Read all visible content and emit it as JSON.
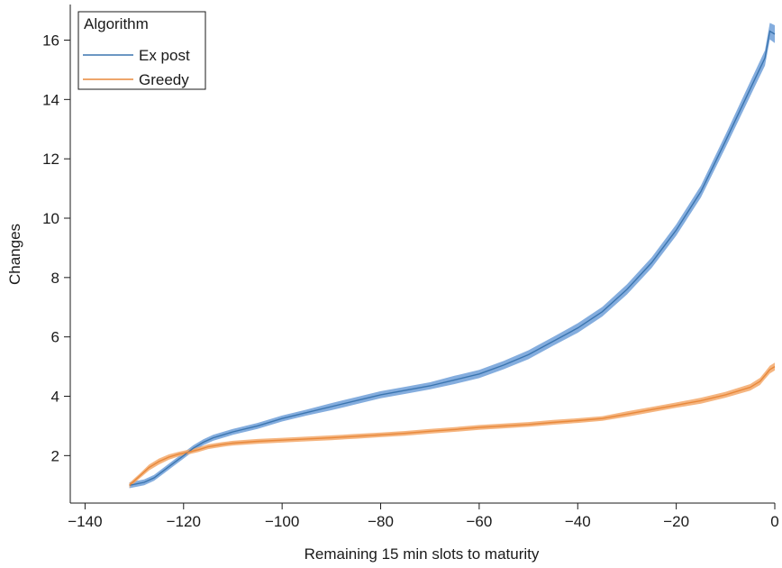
{
  "chart_data": {
    "type": "line",
    "title": "",
    "xlabel": "Remaining 15 min slots to maturity",
    "ylabel": "Changes",
    "xlim": [
      -143,
      0
    ],
    "ylim": [
      0.4,
      17.2
    ],
    "xticks": [
      -140,
      -120,
      -100,
      -80,
      -60,
      -40,
      -20,
      0
    ],
    "xtick_labels": [
      "−140",
      "−120",
      "−100",
      "−80",
      "−60",
      "−40",
      "−20",
      "0"
    ],
    "yticks": [
      2,
      4,
      6,
      8,
      10,
      12,
      14,
      16
    ],
    "ytick_labels": [
      "2",
      "4",
      "6",
      "8",
      "10",
      "12",
      "14",
      "16"
    ],
    "grid": false,
    "legend": {
      "title": "Algorithm",
      "placement": "top-left"
    },
    "series": [
      {
        "name": "Ex post",
        "color": "#3b75af",
        "band_color": "#6f9fd8",
        "x": [
          -131,
          -128,
          -126,
          -124,
          -122,
          -120,
          -118,
          -116,
          -114,
          -112,
          -110,
          -105,
          -100,
          -95,
          -90,
          -85,
          -80,
          -75,
          -70,
          -65,
          -60,
          -55,
          -50,
          -45,
          -40,
          -35,
          -30,
          -25,
          -20,
          -15,
          -10,
          -6,
          -4,
          -2,
          -1,
          0
        ],
        "y": [
          1.0,
          1.1,
          1.25,
          1.5,
          1.75,
          2.0,
          2.25,
          2.45,
          2.6,
          2.7,
          2.8,
          3.0,
          3.25,
          3.45,
          3.65,
          3.85,
          4.05,
          4.2,
          4.35,
          4.55,
          4.75,
          5.05,
          5.4,
          5.85,
          6.3,
          6.85,
          7.6,
          8.5,
          9.6,
          10.9,
          12.6,
          14.0,
          14.7,
          15.4,
          16.3,
          16.2
        ],
        "band": [
          0.1,
          0.1,
          0.1,
          0.1,
          0.1,
          0.1,
          0.1,
          0.1,
          0.1,
          0.1,
          0.1,
          0.1,
          0.1,
          0.1,
          0.12,
          0.12,
          0.12,
          0.12,
          0.12,
          0.14,
          0.14,
          0.14,
          0.15,
          0.15,
          0.16,
          0.16,
          0.17,
          0.18,
          0.19,
          0.2,
          0.22,
          0.24,
          0.25,
          0.26,
          0.28,
          0.3
        ]
      },
      {
        "name": "Greedy",
        "color": "#e8883a",
        "band_color": "#f3a86a",
        "x": [
          -131,
          -129,
          -127,
          -125,
          -123,
          -121,
          -119,
          -117,
          -115,
          -112,
          -110,
          -105,
          -100,
          -95,
          -90,
          -85,
          -80,
          -75,
          -70,
          -65,
          -60,
          -55,
          -50,
          -45,
          -40,
          -35,
          -30,
          -25,
          -20,
          -15,
          -10,
          -5,
          -3,
          -2,
          -1,
          0
        ],
        "y": [
          1.0,
          1.3,
          1.6,
          1.8,
          1.95,
          2.05,
          2.12,
          2.2,
          2.3,
          2.38,
          2.42,
          2.48,
          2.52,
          2.56,
          2.6,
          2.65,
          2.7,
          2.75,
          2.82,
          2.88,
          2.95,
          3.0,
          3.05,
          3.12,
          3.18,
          3.25,
          3.4,
          3.55,
          3.7,
          3.85,
          4.05,
          4.3,
          4.5,
          4.7,
          4.9,
          5.0
        ],
        "band": [
          0.08,
          0.08,
          0.1,
          0.1,
          0.09,
          0.08,
          0.08,
          0.08,
          0.08,
          0.08,
          0.08,
          0.08,
          0.08,
          0.08,
          0.08,
          0.08,
          0.08,
          0.08,
          0.08,
          0.08,
          0.08,
          0.08,
          0.08,
          0.08,
          0.08,
          0.08,
          0.09,
          0.09,
          0.09,
          0.1,
          0.1,
          0.11,
          0.12,
          0.12,
          0.13,
          0.13
        ]
      }
    ]
  }
}
